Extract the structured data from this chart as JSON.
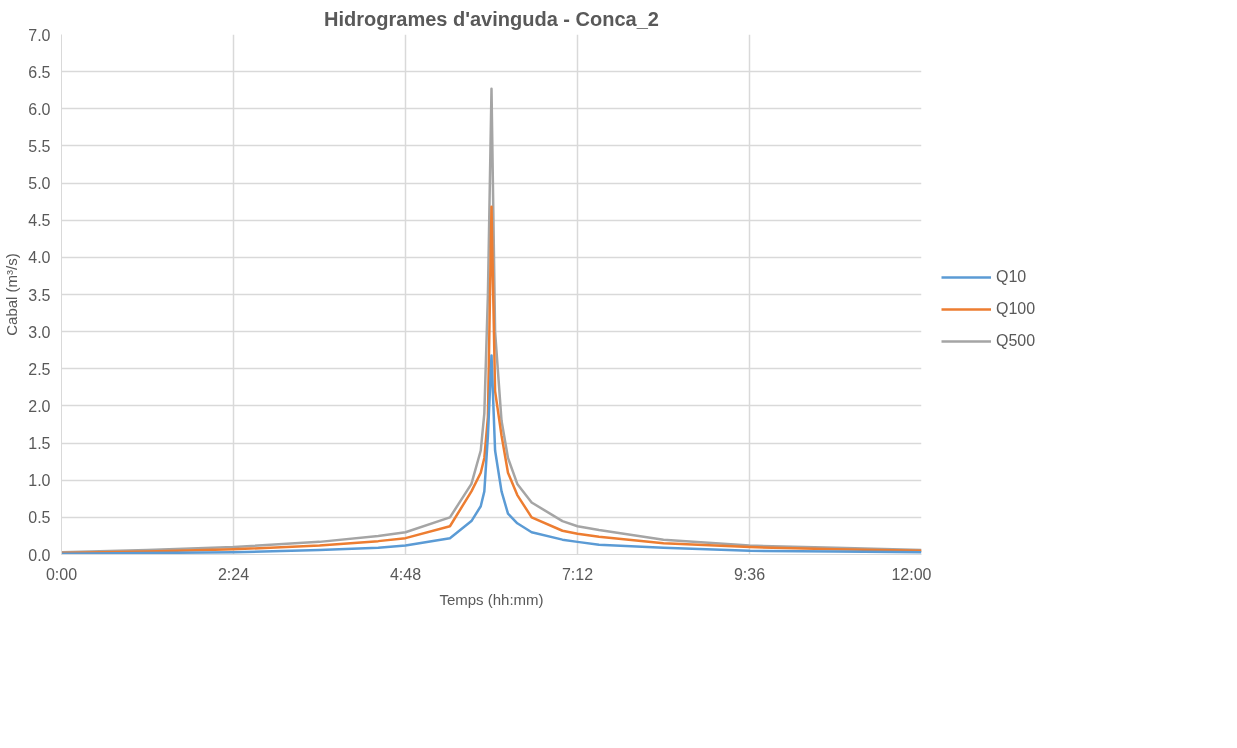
{
  "chart_data": {
    "type": "line",
    "title": "Hidrogrames d'avinguda - Conca_2",
    "xlabel": "Temps (hh:mm)",
    "ylabel": "Cabal (m³/s)",
    "x": [
      0,
      1.2,
      2.4,
      3.6,
      4.42,
      4.8,
      5.42,
      5.72,
      5.85,
      5.9,
      5.95,
      6.0,
      6.05,
      6.14,
      6.23,
      6.36,
      6.56,
      6.99,
      7.2,
      7.5,
      8.4,
      9.6,
      10.8,
      12
    ],
    "series": [
      {
        "name": "Q10",
        "color": "#5b9bd5",
        "values": [
          0.01,
          0.02,
          0.03,
          0.06,
          0.09,
          0.12,
          0.22,
          0.45,
          0.65,
          0.85,
          1.6,
          2.68,
          1.4,
          0.85,
          0.55,
          0.42,
          0.3,
          0.2,
          0.17,
          0.13,
          0.09,
          0.05,
          0.04,
          0.03
        ]
      },
      {
        "name": "Q100",
        "color": "#ed7d31",
        "values": [
          0.02,
          0.04,
          0.07,
          0.12,
          0.18,
          0.22,
          0.38,
          0.85,
          1.1,
          1.3,
          1.85,
          4.68,
          2.2,
          1.6,
          1.1,
          0.8,
          0.5,
          0.32,
          0.28,
          0.24,
          0.15,
          0.1,
          0.07,
          0.05
        ]
      },
      {
        "name": "Q500",
        "color": "#a5a5a5",
        "values": [
          0.03,
          0.06,
          0.1,
          0.17,
          0.25,
          0.3,
          0.5,
          0.95,
          1.4,
          1.9,
          3.5,
          6.27,
          3.0,
          1.8,
          1.3,
          0.95,
          0.7,
          0.45,
          0.38,
          0.33,
          0.2,
          0.12,
          0.09,
          0.06
        ]
      }
    ],
    "xlim": [
      0,
      12
    ],
    "xticks": [
      {
        "value": 0,
        "label": "0:00"
      },
      {
        "value": 2.4,
        "label": "2:24"
      },
      {
        "value": 4.8,
        "label": "4:48"
      },
      {
        "value": 7.2,
        "label": "7:12"
      },
      {
        "value": 9.6,
        "label": "9:36"
      },
      {
        "value": 12,
        "label": "12:00"
      }
    ],
    "ylim": [
      0,
      7
    ],
    "yticks": [
      {
        "value": 0,
        "label": "0.0"
      },
      {
        "value": 0.5,
        "label": "0.5"
      },
      {
        "value": 1,
        "label": "1.0"
      },
      {
        "value": 1.5,
        "label": "1.5"
      },
      {
        "value": 2,
        "label": "2.0"
      },
      {
        "value": 2.5,
        "label": "2.5"
      },
      {
        "value": 3,
        "label": "3.0"
      },
      {
        "value": 3.5,
        "label": "3.5"
      },
      {
        "value": 4,
        "label": "4.0"
      },
      {
        "value": 4.5,
        "label": "4.5"
      },
      {
        "value": 5,
        "label": "5.0"
      },
      {
        "value": 5.5,
        "label": "5.5"
      },
      {
        "value": 6,
        "label": "6.0"
      },
      {
        "value": 6.5,
        "label": "6.5"
      },
      {
        "value": 7,
        "label": "7.0"
      }
    ],
    "grid": true,
    "legend": "right",
    "line_style": "solid"
  }
}
